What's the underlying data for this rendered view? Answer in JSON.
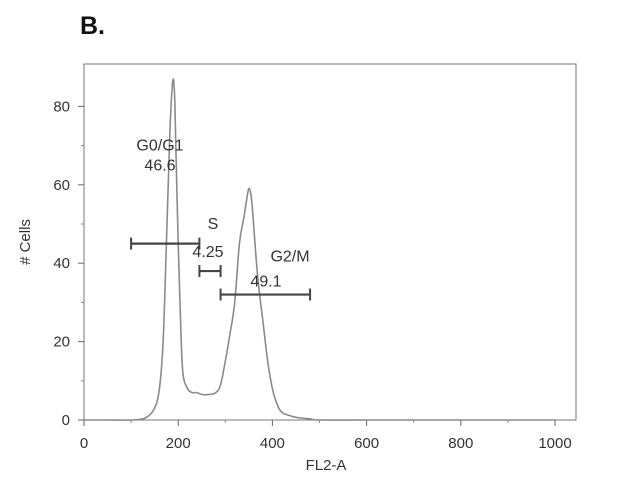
{
  "panel_label": "B.",
  "chart_data": {
    "type": "line",
    "title": "",
    "xlabel": "FL2-A",
    "ylabel": "# Cells",
    "xlim": [
      0,
      1024
    ],
    "ylim": [
      0,
      90
    ],
    "xticks": [
      0,
      200,
      400,
      600,
      800,
      1000
    ],
    "yticks": [
      0,
      20,
      40,
      60,
      80
    ],
    "line_color": "#8a8a8a",
    "gate_color": "#444444",
    "series": [
      {
        "x": [
          0,
          50,
          100,
          130,
          150,
          160,
          168,
          175,
          182,
          188,
          192,
          195,
          200,
          205,
          210,
          220,
          230,
          240,
          250,
          265,
          280,
          290,
          300,
          310,
          320,
          330,
          340,
          345,
          350,
          355,
          360,
          365,
          370,
          380,
          390,
          400,
          410,
          420,
          440,
          460,
          480,
          500,
          600,
          700,
          800,
          900,
          1000
        ],
        "y": [
          0,
          0,
          0,
          0.5,
          3,
          8,
          20,
          45,
          72,
          86,
          84,
          70,
          45,
          25,
          12,
          8,
          7,
          7,
          6.5,
          6.5,
          7,
          9,
          15,
          22,
          30,
          45,
          52,
          56,
          59,
          57,
          50,
          42,
          35,
          25,
          15,
          8,
          4,
          2,
          1,
          0.5,
          0.3,
          0,
          0,
          0,
          0,
          0,
          0
        ]
      }
    ],
    "gates": [
      {
        "name": "G0/G1",
        "value": "46.6",
        "x_start": 100,
        "x_end": 245,
        "y": 45
      },
      {
        "name": "S",
        "value": "4.25",
        "x_start": 245,
        "x_end": 290,
        "y": 38
      },
      {
        "name": "G2/M",
        "value": "49.1",
        "x_start": 290,
        "x_end": 480,
        "y": 32
      }
    ]
  }
}
